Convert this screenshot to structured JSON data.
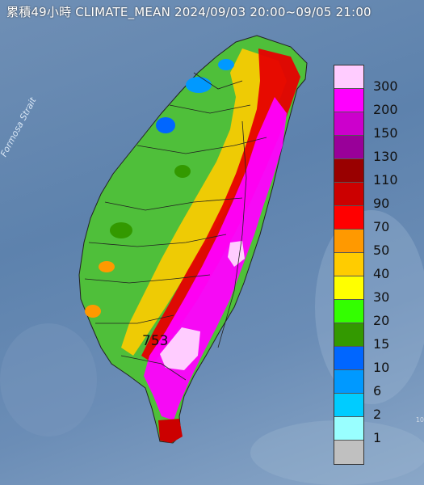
{
  "header": {
    "title": "累積49小時 CLIMATE_MEAN 2024/09/03 20:00~09/05 21:00"
  },
  "map": {
    "strait_label": "Formosa Strait",
    "max_value_label": "753",
    "corner_mark": "10"
  },
  "legend": {
    "items": [
      {
        "label": "300",
        "color": "#ffccff"
      },
      {
        "label": "200",
        "color": "#ff00ff"
      },
      {
        "label": "150",
        "color": "#cc00cc"
      },
      {
        "label": "130",
        "color": "#990099"
      },
      {
        "label": "110",
        "color": "#990000"
      },
      {
        "label": "90",
        "color": "#cc0000"
      },
      {
        "label": "70",
        "color": "#ff0000"
      },
      {
        "label": "50",
        "color": "#ff9900"
      },
      {
        "label": "40",
        "color": "#ffcc00"
      },
      {
        "label": "30",
        "color": "#ffff00"
      },
      {
        "label": "20",
        "color": "#33ff00"
      },
      {
        "label": "15",
        "color": "#339900"
      },
      {
        "label": "10",
        "color": "#0066ff"
      },
      {
        "label": "6",
        "color": "#0099ff"
      },
      {
        "label": "2",
        "color": "#00ccff"
      },
      {
        "label": "1",
        "color": "#99ffff"
      },
      {
        "label": "",
        "color": "#c0c0c0"
      }
    ]
  }
}
